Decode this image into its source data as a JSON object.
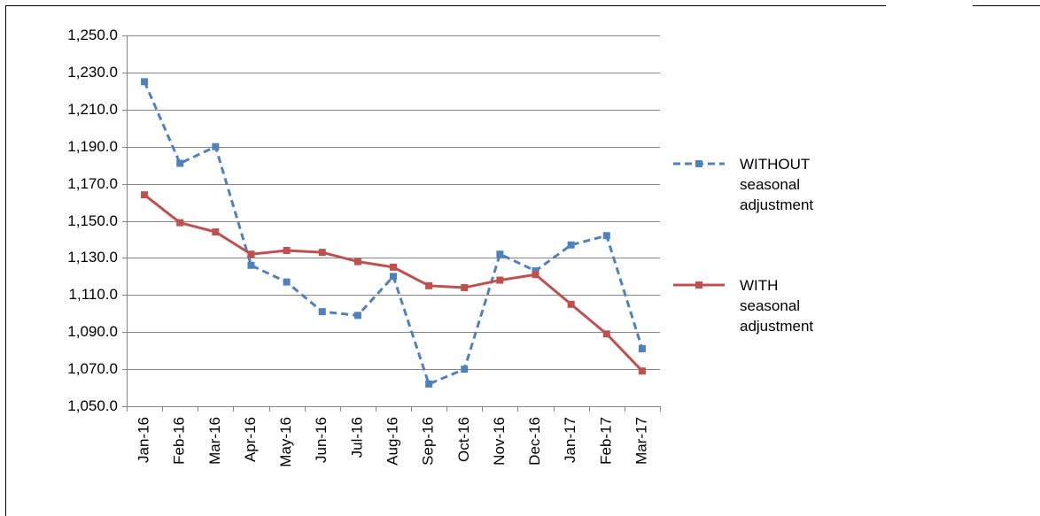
{
  "chart_data": {
    "type": "line",
    "categories": [
      "Jan-16",
      "Feb-16",
      "Mar-16",
      "Apr-16",
      "May-16",
      "Jun-16",
      "Jul-16",
      "Aug-16",
      "Sep-16",
      "Oct-16",
      "Nov-16",
      "Dec-16",
      "Jan-17",
      "Feb-17",
      "Mar-17"
    ],
    "series": [
      {
        "name": "WITHOUT seasonal adjustment",
        "color": "#4f81bd",
        "dashed": true,
        "values": [
          1225,
          1181,
          1190,
          1126,
          1117,
          1101,
          1099,
          1120,
          1062,
          1070,
          1132,
          1123,
          1137,
          1142,
          1081
        ]
      },
      {
        "name": "WITH seasonal adjustment",
        "color": "#c0504d",
        "dashed": false,
        "values": [
          1164,
          1149,
          1144,
          1132,
          1134,
          1133,
          1128,
          1125,
          1115,
          1114,
          1118,
          1121,
          1105,
          1089,
          1069
        ]
      }
    ],
    "ylim": [
      1050,
      1250
    ],
    "yticks": [
      {
        "value": 1050,
        "label": "1,050.0"
      },
      {
        "value": 1070,
        "label": "1,070.0"
      },
      {
        "value": 1090,
        "label": "1,090.0"
      },
      {
        "value": 1110,
        "label": "1,110.0"
      },
      {
        "value": 1130,
        "label": "1,130.0"
      },
      {
        "value": 1150,
        "label": "1,150.0"
      },
      {
        "value": 1170,
        "label": "1,170.0"
      },
      {
        "value": 1190,
        "label": "1,190.0"
      },
      {
        "value": 1210,
        "label": "1,210.0"
      },
      {
        "value": 1230,
        "label": "1,230.0"
      },
      {
        "value": 1250,
        "label": "1,250.0"
      }
    ],
    "grid": true,
    "legend": "right"
  }
}
